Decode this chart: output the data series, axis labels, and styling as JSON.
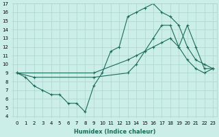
{
  "xlabel": "Humidex (Indice chaleur)",
  "xlim": [
    -0.5,
    23.5
  ],
  "ylim": [
    4,
    17
  ],
  "xticks": [
    0,
    1,
    2,
    3,
    4,
    5,
    6,
    7,
    8,
    9,
    10,
    11,
    12,
    13,
    14,
    15,
    16,
    17,
    18,
    19,
    20,
    21,
    22,
    23
  ],
  "yticks": [
    4,
    5,
    6,
    7,
    8,
    9,
    10,
    11,
    12,
    13,
    14,
    15,
    16,
    17
  ],
  "bg_color": "#cceee8",
  "grid_color": "#aad4cc",
  "line_color": "#1a6b5a",
  "line1_x": [
    0,
    1,
    2,
    3,
    4,
    5,
    6,
    7,
    8,
    9,
    10,
    11,
    12,
    13,
    14,
    15,
    16,
    17,
    18,
    19,
    20,
    21,
    22,
    23
  ],
  "line1_y": [
    9.0,
    8.5,
    7.5,
    7.0,
    6.5,
    6.5,
    5.5,
    5.5,
    4.5,
    7.5,
    9.0,
    11.5,
    12.0,
    15.5,
    16.0,
    16.5,
    17.0,
    16.0,
    15.5,
    14.5,
    12.0,
    10.5,
    10.0,
    9.5
  ],
  "line2_x": [
    0,
    9,
    13,
    14,
    15,
    16,
    17,
    18,
    19,
    20,
    21,
    22,
    23
  ],
  "line2_y": [
    9.0,
    9.0,
    10.5,
    11.0,
    11.5,
    12.0,
    12.5,
    13.0,
    12.0,
    10.5,
    9.5,
    9.0,
    9.5
  ],
  "line3_x": [
    0,
    2,
    9,
    13,
    14,
    15,
    16,
    17,
    18,
    19,
    20,
    21,
    22,
    23
  ],
  "line3_y": [
    9.0,
    8.5,
    8.5,
    9.0,
    10.0,
    11.5,
    13.0,
    14.5,
    14.5,
    12.0,
    14.5,
    12.0,
    9.5,
    9.5
  ]
}
